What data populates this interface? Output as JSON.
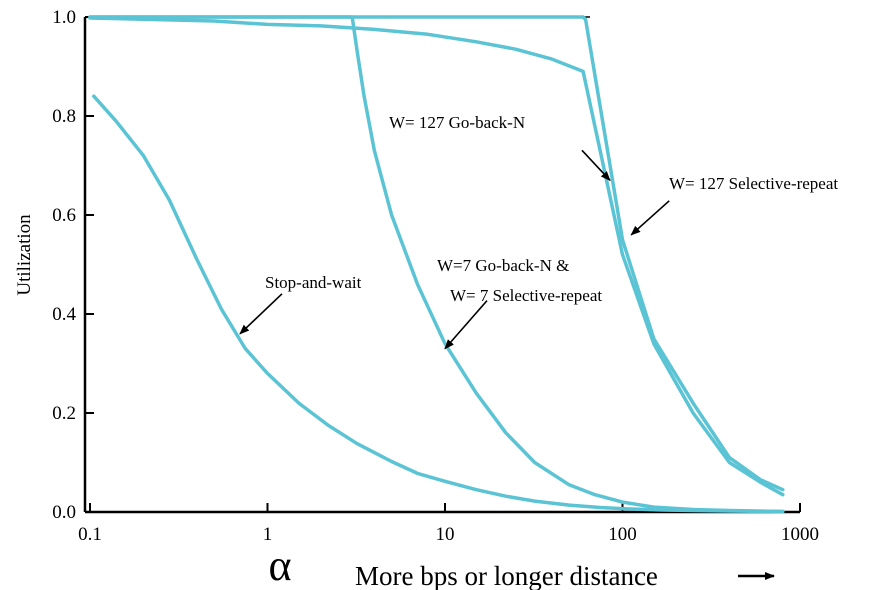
{
  "chart_data": {
    "type": "line",
    "title": "",
    "xlabel": "More bps or longer distance",
    "xlabel_symbol": "α",
    "ylabel": "Utilization",
    "xscale": "log",
    "xlim": [
      0.1,
      1000
    ],
    "ylim": [
      0.0,
      1.0
    ],
    "x_ticks": [
      {
        "value": 0.1,
        "label": "0.1"
      },
      {
        "value": 1,
        "label": "1"
      },
      {
        "value": 10,
        "label": "10"
      },
      {
        "value": 100,
        "label": "100"
      },
      {
        "value": 1000,
        "label": "1000"
      }
    ],
    "y_ticks": [
      {
        "value": 0.0,
        "label": "0.0"
      },
      {
        "value": 0.2,
        "label": "0.2"
      },
      {
        "value": 0.4,
        "label": "0.4"
      },
      {
        "value": 0.6,
        "label": "0.6"
      },
      {
        "value": 0.8,
        "label": "0.8"
      },
      {
        "value": 1.0,
        "label": "1.0"
      }
    ],
    "grid": false,
    "legend": "none",
    "line_color": "#5bc4d4",
    "series": [
      {
        "x": [
          0.105,
          0.14,
          0.2,
          0.28,
          0.4,
          0.55,
          0.75,
          1.0,
          1.5,
          2.2,
          3.2,
          5,
          7,
          10,
          15,
          22,
          32,
          50,
          75,
          110,
          170,
          250,
          400,
          800
        ],
        "y": [
          0.84,
          0.79,
          0.72,
          0.63,
          0.51,
          0.41,
          0.33,
          0.28,
          0.22,
          0.175,
          0.138,
          0.102,
          0.078,
          0.062,
          0.045,
          0.032,
          0.022,
          0.014,
          0.009,
          0.006,
          0.004,
          0.003,
          0.002,
          0.001
        ]
      },
      {
        "x": [
          0.1,
          3.0,
          3.2,
          3.5,
          4,
          5,
          7,
          10,
          15,
          22,
          32,
          50,
          70,
          100,
          150,
          250,
          400,
          800
        ],
        "y": [
          1.0,
          1.0,
          0.93,
          0.84,
          0.73,
          0.6,
          0.46,
          0.34,
          0.24,
          0.16,
          0.1,
          0.055,
          0.035,
          0.02,
          0.01,
          0.005,
          0.003,
          0.001
        ]
      },
      {
        "x": [
          0.1,
          0.5,
          1,
          2,
          4,
          8,
          15,
          25,
          40,
          60,
          100,
          150,
          250,
          400,
          600,
          800
        ],
        "y": [
          0.998,
          0.992,
          0.985,
          0.982,
          0.975,
          0.965,
          0.95,
          0.935,
          0.915,
          0.89,
          0.52,
          0.34,
          0.2,
          0.1,
          0.06,
          0.035
        ]
      },
      {
        "x": [
          0.1,
          1,
          10,
          60,
          62,
          100,
          150,
          250,
          400,
          600,
          800
        ],
        "y": [
          1.0,
          1.0,
          1.0,
          1.0,
          0.995,
          0.55,
          0.35,
          0.22,
          0.11,
          0.065,
          0.045
        ]
      }
    ],
    "annotations": [
      {
        "text": "Stop-and-wait",
        "arrow_to": {
          "x": 0.7,
          "y": 0.36
        }
      },
      {
        "text": "W=7 Go-back-N &",
        "arrow_to": {
          "x": 10,
          "y": 0.33
        }
      },
      {
        "text": "W= 7 Selective-repeat"
      },
      {
        "text": "W= 127 Go-back-N",
        "arrow_to": {
          "x": 85,
          "y": 0.67
        }
      },
      {
        "text": "W= 127 Selective-repeat",
        "arrow_to": {
          "x": 112,
          "y": 0.56
        }
      }
    ]
  }
}
